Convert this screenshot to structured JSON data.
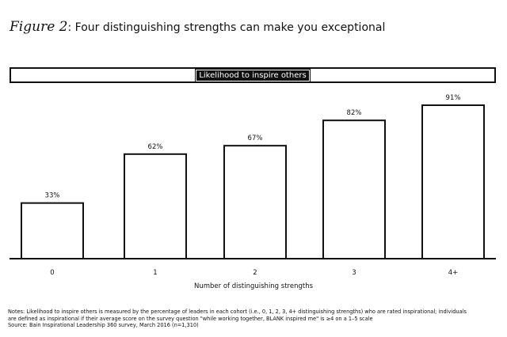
{
  "header": {
    "figure_label": "Figure 2",
    "title": ": Four distinguishing strengths can make you exceptional"
  },
  "banner": {
    "label": "Likelihood to inspire others"
  },
  "chart_data": {
    "type": "bar",
    "categories": [
      "0",
      "1",
      "2",
      "3",
      "4+"
    ],
    "values": [
      33,
      62,
      67,
      82,
      91
    ],
    "data_labels": [
      "33%",
      "62%",
      "67%",
      "82%",
      "91%"
    ],
    "xlabel": "Number of distinguishing strengths",
    "ylabel": "",
    "ylim": [
      0,
      100
    ],
    "grid": false,
    "colors": {
      "bar_fill": "#ffffff",
      "bar_stroke": "#111111"
    }
  },
  "notes": {
    "line1": "Notes: Likelihood to inspire others is measured by the percentage of leaders in each cohort (i.e., 0, 1, 2, 3, 4+ distinguishing strengths) who are rated inspirational; individuals",
    "line2": "are defined as inspirational if their average score on the survey question \"while working together, BLANK inspired me\" is ≥4 on a 1–5 scale",
    "source": "Source: Bain Inspirational Leadership 360 survey, March 2016 (n=1,310)"
  }
}
